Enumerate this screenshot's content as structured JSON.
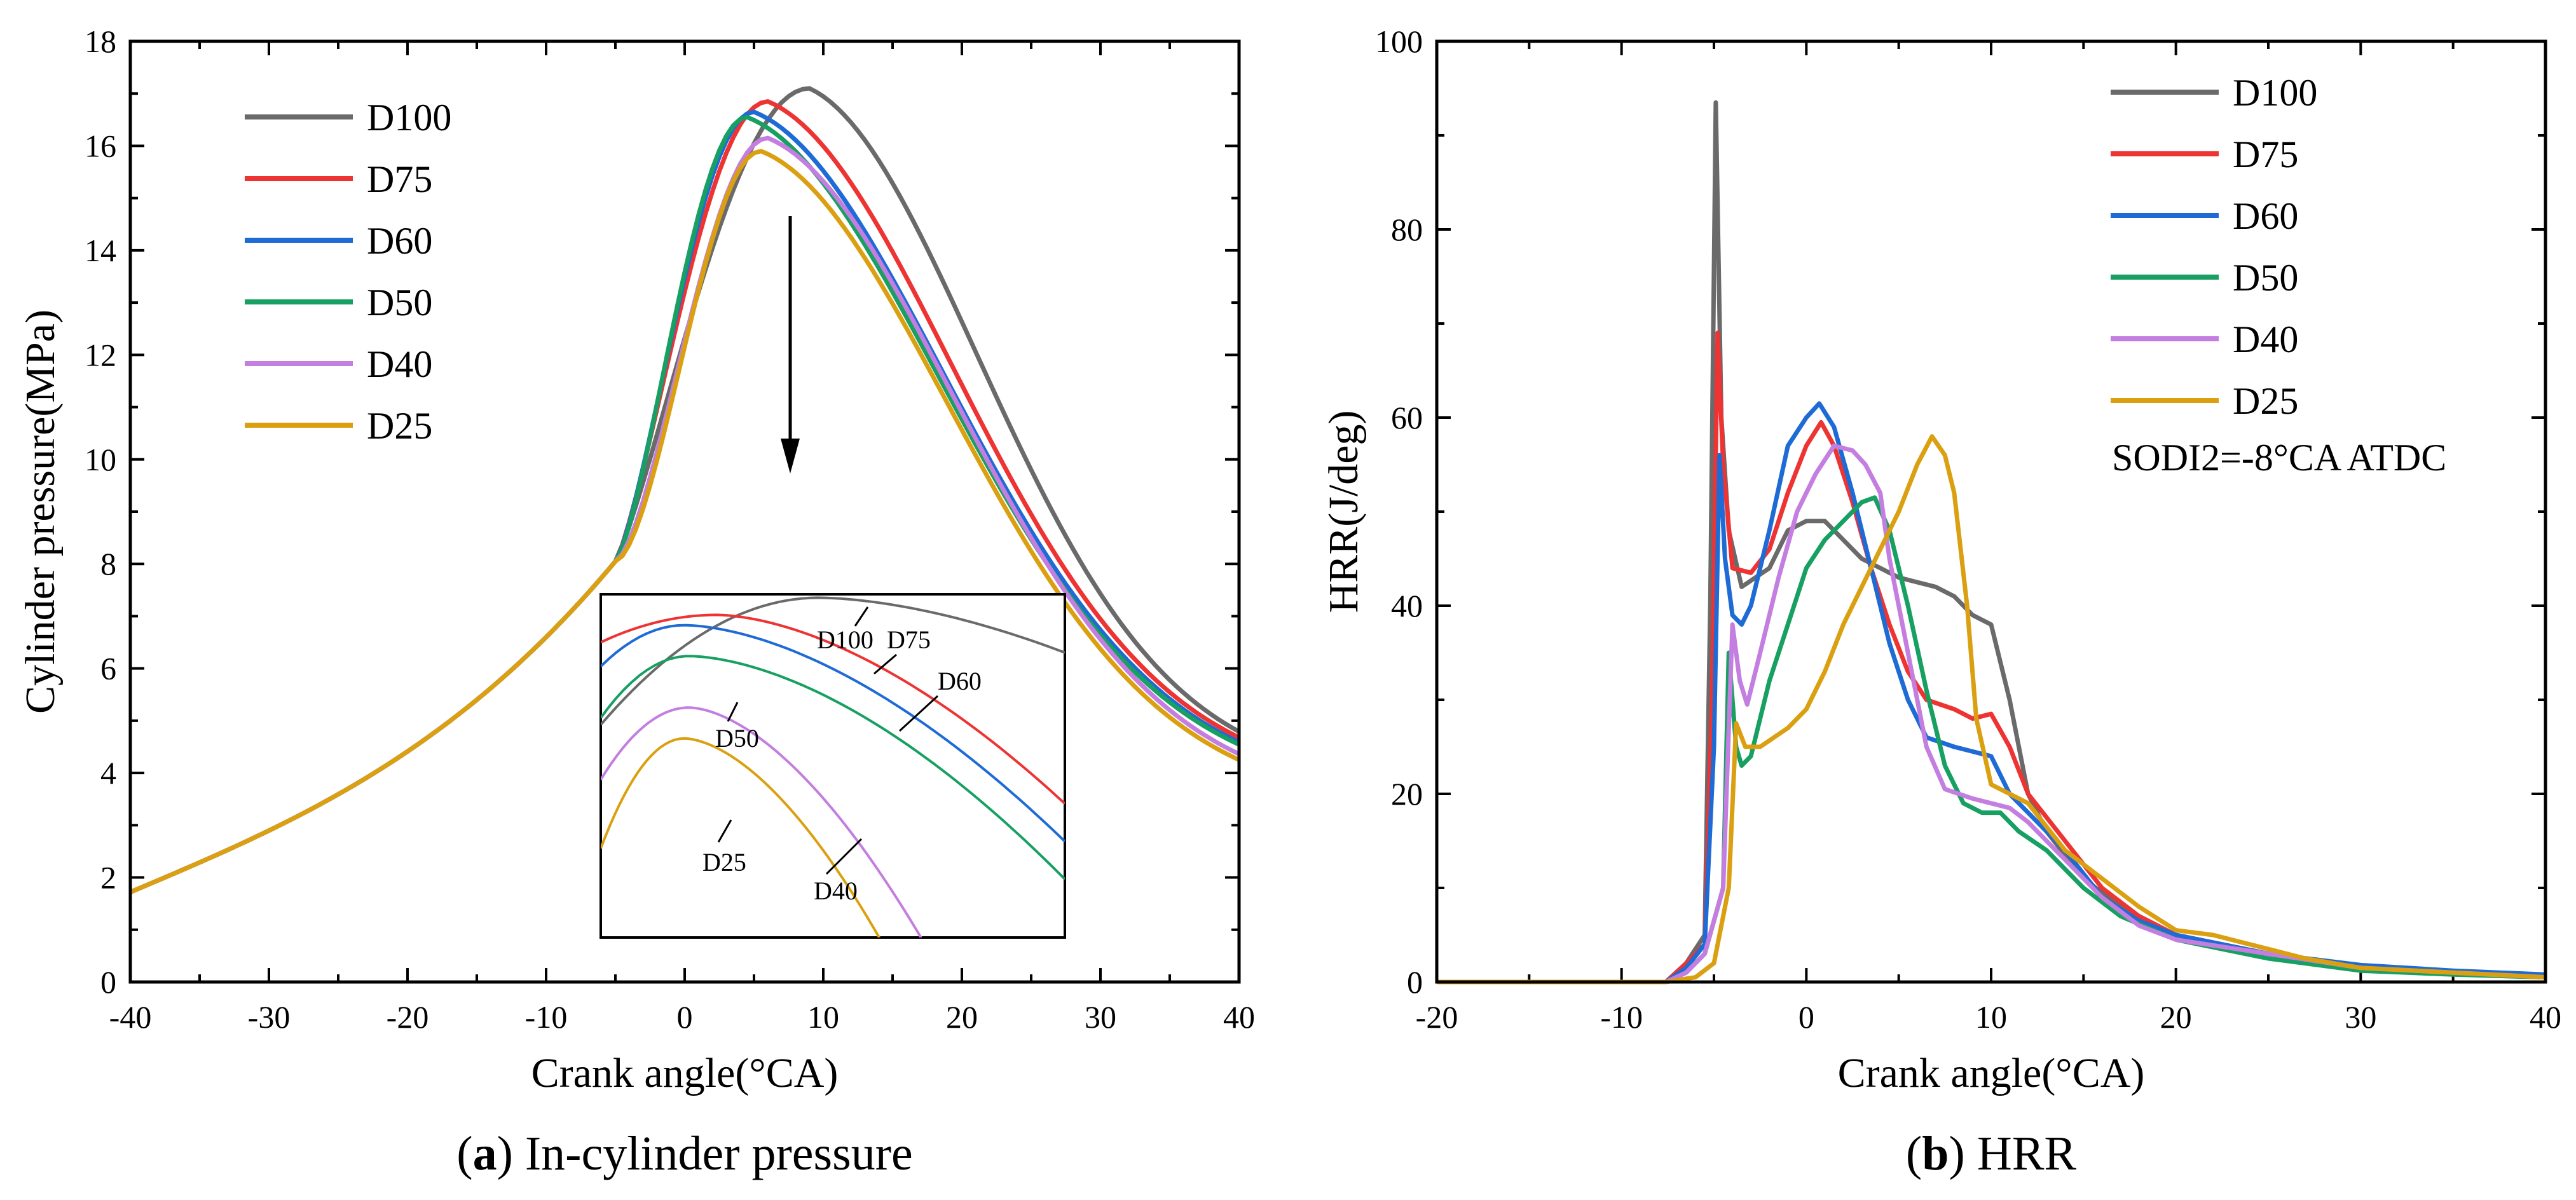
{
  "captions": [
    {
      "letter": "a",
      "title": "In-cylinder pressure"
    },
    {
      "letter": "b",
      "title": "HRR"
    }
  ],
  "chart_data": [
    {
      "type": "line",
      "panel": "a",
      "xlabel": "Crank angle(°CA)",
      "ylabel": "Cylinder pressure(MPa)",
      "xlim": [
        -40,
        40
      ],
      "ylim": [
        0,
        18
      ],
      "xticks": [
        -40,
        -30,
        -20,
        -10,
        0,
        10,
        20,
        30,
        40
      ],
      "yticks": [
        0,
        2,
        4,
        6,
        8,
        10,
        12,
        14,
        16,
        18
      ],
      "legend_position": "top-left",
      "arrow_annotation": "downward arrow from D100 to D25 peak",
      "series": [
        {
          "name": "D100",
          "color": "#6a6a6a",
          "peak_x": 9,
          "peak_y": 17.1
        },
        {
          "name": "D75",
          "color": "#ee3333",
          "peak_x": 6,
          "peak_y": 16.85
        },
        {
          "name": "D60",
          "color": "#1f6bd6",
          "peak_x": 5,
          "peak_y": 16.65
        },
        {
          "name": "D50",
          "color": "#17a062",
          "peak_x": 4.5,
          "peak_y": 16.55
        },
        {
          "name": "D40",
          "color": "#c47ee0",
          "peak_x": 6,
          "peak_y": 16.15
        },
        {
          "name": "D25",
          "color": "#dba011",
          "peak_x": 5.5,
          "peak_y": 15.9
        }
      ],
      "inset_labels": [
        "D100",
        "D75",
        "D60",
        "D50",
        "D25",
        "D40"
      ]
    },
    {
      "type": "line",
      "panel": "b",
      "xlabel": "Crank angle(°CA)",
      "ylabel": "HRR(J/deg)",
      "xlim": [
        -20,
        40
      ],
      "ylim": [
        0,
        100
      ],
      "xticks": [
        -20,
        -10,
        0,
        10,
        20,
        30,
        40
      ],
      "yticks": [
        0,
        20,
        40,
        60,
        80,
        100
      ],
      "legend_position": "top-right",
      "annotation": "SODI2=-8°CA ATDC",
      "series": [
        {
          "name": "D100",
          "color": "#6a6a6a",
          "points": [
            [
              -20,
              0
            ],
            [
              -7.6,
              0
            ],
            [
              -6.5,
              2
            ],
            [
              -5.5,
              5
            ],
            [
              -5.2,
              40
            ],
            [
              -4.9,
              93.5
            ],
            [
              -4.6,
              60
            ],
            [
              -4.2,
              48
            ],
            [
              -3.5,
              42
            ],
            [
              -2,
              44
            ],
            [
              -1,
              48
            ],
            [
              0,
              49
            ],
            [
              1,
              49
            ],
            [
              2,
              47
            ],
            [
              3,
              45
            ],
            [
              4,
              44
            ],
            [
              5,
              43
            ],
            [
              6,
              42.5
            ],
            [
              7,
              42
            ],
            [
              8,
              41
            ],
            [
              9,
              39
            ],
            [
              10,
              38
            ],
            [
              11,
              30
            ],
            [
              12,
              20
            ],
            [
              13,
              16
            ],
            [
              15,
              11
            ],
            [
              17,
              8
            ],
            [
              20,
              5
            ],
            [
              25,
              3
            ],
            [
              30,
              1.5
            ],
            [
              35,
              1
            ],
            [
              40,
              0.5
            ]
          ]
        },
        {
          "name": "D75",
          "color": "#ee3333",
          "points": [
            [
              -20,
              0
            ],
            [
              -7.6,
              0
            ],
            [
              -6.5,
              2
            ],
            [
              -5.5,
              4
            ],
            [
              -5.1,
              30
            ],
            [
              -4.8,
              69
            ],
            [
              -4.5,
              55
            ],
            [
              -4,
              44
            ],
            [
              -3,
              43.5
            ],
            [
              -2,
              46
            ],
            [
              -1,
              52
            ],
            [
              0,
              57
            ],
            [
              0.8,
              59.5
            ],
            [
              1.5,
              57
            ],
            [
              2.5,
              51
            ],
            [
              3.5,
              44
            ],
            [
              4.5,
              38
            ],
            [
              5.5,
              33
            ],
            [
              6.5,
              30
            ],
            [
              8,
              29
            ],
            [
              9,
              28
            ],
            [
              10,
              28.5
            ],
            [
              11,
              25
            ],
            [
              12,
              20
            ],
            [
              14,
              15
            ],
            [
              16,
              10
            ],
            [
              18,
              7
            ],
            [
              20,
              5
            ],
            [
              25,
              3
            ],
            [
              30,
              1.5
            ],
            [
              35,
              1
            ],
            [
              40,
              0.5
            ]
          ]
        },
        {
          "name": "D60",
          "color": "#1f6bd6",
          "points": [
            [
              -20,
              0
            ],
            [
              -7.6,
              0
            ],
            [
              -6.5,
              1.5
            ],
            [
              -5.5,
              4
            ],
            [
              -5,
              25
            ],
            [
              -4.7,
              56
            ],
            [
              -4.4,
              45
            ],
            [
              -4,
              39
            ],
            [
              -3.5,
              38
            ],
            [
              -3,
              40
            ],
            [
              -2,
              48
            ],
            [
              -1,
              57
            ],
            [
              0,
              60
            ],
            [
              0.7,
              61.5
            ],
            [
              1.5,
              59
            ],
            [
              2.5,
              52
            ],
            [
              3.5,
              44
            ],
            [
              4.5,
              36
            ],
            [
              5.5,
              30
            ],
            [
              6.5,
              26
            ],
            [
              8,
              25
            ],
            [
              9,
              24.5
            ],
            [
              10,
              24
            ],
            [
              11,
              20
            ],
            [
              12,
              18
            ],
            [
              14,
              14
            ],
            [
              16,
              9
            ],
            [
              18,
              6.5
            ],
            [
              20,
              5
            ],
            [
              25,
              3
            ],
            [
              30,
              1.8
            ],
            [
              35,
              1.2
            ],
            [
              40,
              0.8
            ]
          ]
        },
        {
          "name": "D50",
          "color": "#17a062",
          "points": [
            [
              -20,
              0
            ],
            [
              -7.6,
              0
            ],
            [
              -6.5,
              1
            ],
            [
              -5.5,
              3
            ],
            [
              -4.5,
              10
            ],
            [
              -4.2,
              35
            ],
            [
              -3.8,
              25
            ],
            [
              -3.5,
              23
            ],
            [
              -3,
              24
            ],
            [
              -2,
              32
            ],
            [
              -1,
              38
            ],
            [
              0,
              44
            ],
            [
              1,
              47
            ],
            [
              2,
              49
            ],
            [
              3,
              51
            ],
            [
              3.7,
              51.5
            ],
            [
              4.5,
              48
            ],
            [
              5.5,
              40
            ],
            [
              6.5,
              31
            ],
            [
              7.5,
              23
            ],
            [
              8.5,
              19
            ],
            [
              9.5,
              18
            ],
            [
              10.5,
              18
            ],
            [
              11.5,
              16
            ],
            [
              13,
              14
            ],
            [
              15,
              10
            ],
            [
              17,
              7
            ],
            [
              20,
              4.5
            ],
            [
              25,
              2.5
            ],
            [
              30,
              1.2
            ],
            [
              35,
              0.8
            ],
            [
              40,
              0.5
            ]
          ]
        },
        {
          "name": "D40",
          "color": "#c47ee0",
          "points": [
            [
              -20,
              0
            ],
            [
              -7.6,
              0
            ],
            [
              -6.5,
              1
            ],
            [
              -5.5,
              3
            ],
            [
              -4.5,
              10
            ],
            [
              -4,
              38
            ],
            [
              -3.6,
              32
            ],
            [
              -3.2,
              29.5
            ],
            [
              -2.5,
              35
            ],
            [
              -1.5,
              43
            ],
            [
              -0.5,
              50
            ],
            [
              0.5,
              54
            ],
            [
              1.5,
              57
            ],
            [
              2.5,
              56.5
            ],
            [
              3.2,
              55
            ],
            [
              4,
              52
            ],
            [
              4.5,
              45
            ],
            [
              5.5,
              35
            ],
            [
              6.5,
              25
            ],
            [
              7.5,
              20.5
            ],
            [
              9,
              19.5
            ],
            [
              10,
              19
            ],
            [
              11,
              18.5
            ],
            [
              12,
              17
            ],
            [
              14,
              13
            ],
            [
              16,
              9
            ],
            [
              18,
              6
            ],
            [
              20,
              4.5
            ],
            [
              25,
              3
            ],
            [
              30,
              1.5
            ],
            [
              35,
              1
            ],
            [
              40,
              0.5
            ]
          ]
        },
        {
          "name": "D25",
          "color": "#dba011",
          "points": [
            [
              -20,
              0
            ],
            [
              -7.6,
              0
            ],
            [
              -6,
              0.5
            ],
            [
              -5,
              2
            ],
            [
              -4.2,
              10
            ],
            [
              -3.8,
              27.5
            ],
            [
              -3.3,
              25
            ],
            [
              -2.5,
              25
            ],
            [
              -1,
              27
            ],
            [
              0,
              29
            ],
            [
              1,
              33
            ],
            [
              2,
              38
            ],
            [
              3,
              42
            ],
            [
              4,
              46
            ],
            [
              5,
              50
            ],
            [
              6,
              55
            ],
            [
              6.8,
              58
            ],
            [
              7.5,
              56
            ],
            [
              8,
              52
            ],
            [
              8.7,
              40
            ],
            [
              9.2,
              28
            ],
            [
              10,
              21
            ],
            [
              11,
              20
            ],
            [
              12,
              19
            ],
            [
              14,
              14
            ],
            [
              16,
              11
            ],
            [
              18,
              8
            ],
            [
              20,
              5.5
            ],
            [
              22,
              5
            ],
            [
              23,
              4.5
            ],
            [
              24,
              4
            ],
            [
              25,
              3.5
            ],
            [
              27,
              2.5
            ],
            [
              30,
              1.5
            ],
            [
              35,
              1
            ],
            [
              40,
              0.5
            ]
          ]
        }
      ]
    }
  ]
}
